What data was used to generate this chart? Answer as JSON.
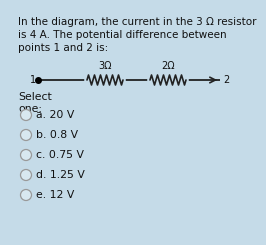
{
  "background_color": "#c5dbe8",
  "title_lines": [
    "In the diagram, the current in the 3 Ω resistor",
    "is 4 A. The potential difference between",
    "points 1 and 2 is:"
  ],
  "title_fontsize": 7.5,
  "res1_label": "3Ω",
  "res2_label": "2Ω",
  "select_text": "Select",
  "one_text": "one:",
  "options": [
    "a. 20 V",
    "b. 0.8 V",
    "c. 0.75 V",
    "d. 1.25 V",
    "e. 12 V"
  ],
  "text_color": "#111111",
  "line_color": "#222222",
  "radio_edge_color": "#999999",
  "radio_face_color": "#d8e8f0"
}
